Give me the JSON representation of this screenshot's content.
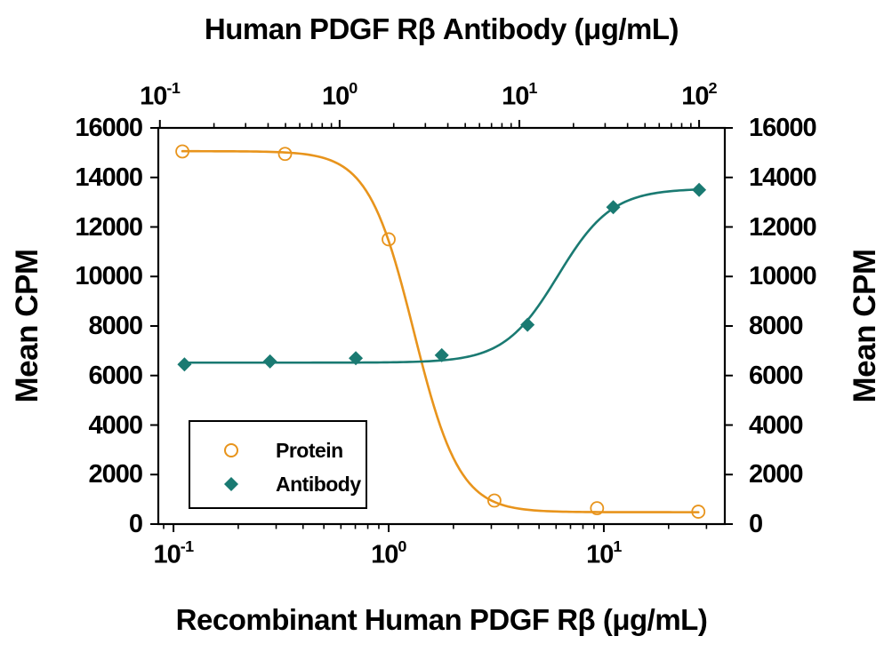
{
  "chart_data": {
    "type": "line",
    "top_xlabel": "Human PDGF Rβ Antibody (μg/mL)",
    "bottom_xlabel": "Recombinant Human PDGF Rβ (μg/mL)",
    "left_ylabel": "Mean CPM",
    "right_ylabel": "Mean CPM",
    "grid": false,
    "y_axis": {
      "range": [
        0,
        16000
      ],
      "ticks": [
        0,
        2000,
        4000,
        6000,
        8000,
        10000,
        12000,
        14000,
        16000
      ],
      "sides": [
        "left",
        "right"
      ]
    },
    "top_x_axis": {
      "scale": "log",
      "range": [
        0.098,
        139
      ],
      "tick_values": [
        0.1,
        1,
        10,
        100
      ]
    },
    "bottom_x_axis": {
      "scale": "log",
      "range": [
        0.085,
        36.5
      ],
      "tick_values": [
        0.1,
        1,
        10
      ]
    },
    "series": [
      {
        "name": "Protein",
        "x_axis": "bottom",
        "marker": "open-circle",
        "color": "#E8941C",
        "x": [
          0.11,
          0.33,
          1.0,
          3.1,
          9.3,
          27.5
        ],
        "y": [
          15050,
          14950,
          11500,
          950,
          640,
          500
        ],
        "fit_4pl": {
          "low_dose_asymptote": 15060,
          "high_dose_asymptote": 480,
          "ec50": 1.31,
          "hill": 4.1
        }
      },
      {
        "name": "Antibody",
        "x_axis": "top",
        "marker": "filled-diamond",
        "color": "#1A7A72",
        "x": [
          0.137,
          0.41,
          1.23,
          3.7,
          11.1,
          33.3,
          100
        ],
        "y": [
          6450,
          6570,
          6700,
          6820,
          8050,
          12800,
          13500
        ],
        "fit_4pl": {
          "low_dose_asymptote": 6520,
          "high_dose_asymptote": 13550,
          "ec50": 16.4,
          "hill": 2.9
        }
      }
    ],
    "legend": {
      "position": "lower-left",
      "border": true
    }
  }
}
